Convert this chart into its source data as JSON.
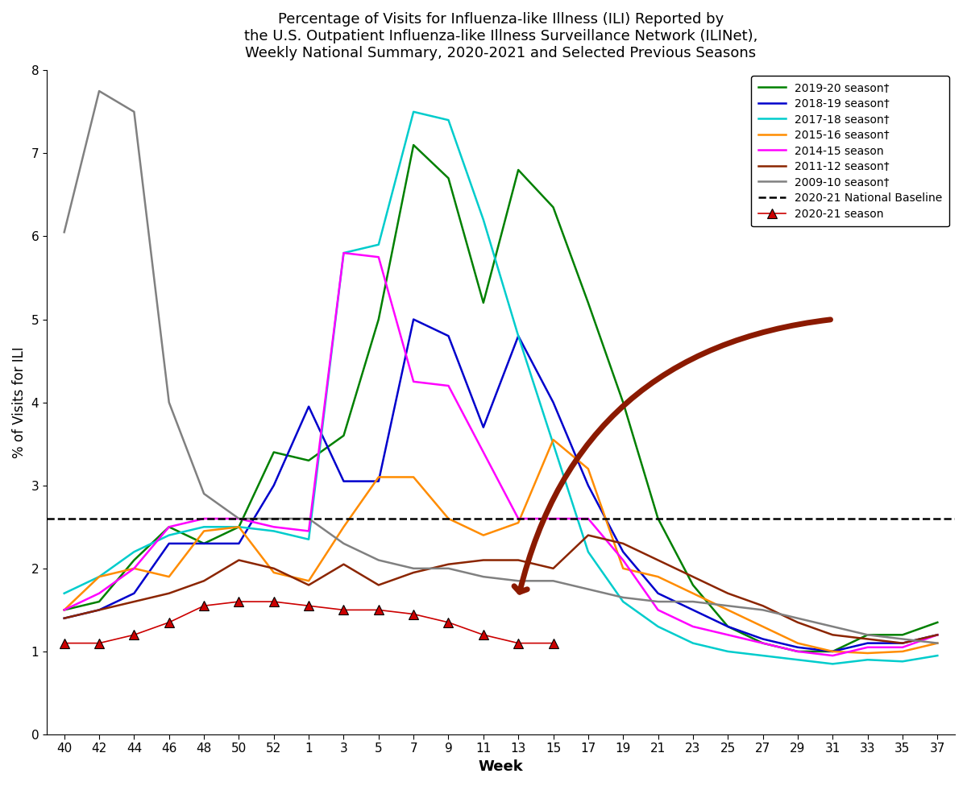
{
  "title": "Percentage of Visits for Influenza-like Illness (ILI) Reported by\nthe U.S. Outpatient Influenza-like Illness Surveillance Network (ILINet),\nWeekly National Summary, 2020-2021 and Selected Previous Seasons",
  "xlabel": "Week",
  "ylabel": "% of Visits for ILI",
  "baseline": 2.6,
  "ylim": [
    0,
    8
  ],
  "yticks": [
    0,
    1,
    2,
    3,
    4,
    5,
    6,
    7,
    8
  ],
  "x_labels": [
    "40",
    "42",
    "44",
    "46",
    "48",
    "50",
    "52",
    "1",
    "3",
    "5",
    "7",
    "9",
    "11",
    "13",
    "15",
    "17",
    "19",
    "21",
    "23",
    "25",
    "27",
    "29",
    "31",
    "33",
    "35",
    "37"
  ],
  "seasons": {
    "2019-20": {
      "color": "#008000",
      "label": "2019-20 season†",
      "data": [
        1.5,
        1.6,
        2.1,
        2.5,
        2.3,
        2.5,
        3.4,
        3.3,
        3.6,
        5.0,
        7.1,
        6.7,
        5.2,
        6.8,
        6.35,
        5.2,
        4.0,
        2.6,
        1.8,
        1.3,
        1.1,
        1.0,
        1.0,
        1.2,
        1.2,
        1.35
      ]
    },
    "2018-19": {
      "color": "#0000CC",
      "label": "2018-19 season†",
      "data": [
        1.4,
        1.5,
        1.7,
        2.3,
        2.3,
        2.3,
        3.0,
        3.95,
        3.05,
        3.05,
        5.0,
        4.8,
        3.7,
        4.8,
        4.0,
        3.0,
        2.2,
        1.7,
        1.5,
        1.3,
        1.15,
        1.05,
        1.0,
        1.1,
        1.1,
        1.2
      ]
    },
    "2017-18": {
      "color": "#00CCCC",
      "label": "2017-18 season†",
      "data": [
        1.7,
        1.9,
        2.2,
        2.4,
        2.5,
        2.5,
        2.45,
        2.35,
        5.8,
        5.9,
        7.5,
        7.4,
        6.2,
        4.8,
        3.5,
        2.2,
        1.6,
        1.3,
        1.1,
        1.0,
        0.95,
        0.9,
        0.85,
        0.9,
        0.88,
        0.95
      ]
    },
    "2015-16": {
      "color": "#FF8C00",
      "label": "2015-16 season†",
      "data": [
        1.5,
        1.9,
        2.0,
        1.9,
        2.45,
        2.5,
        1.95,
        1.85,
        2.5,
        3.1,
        3.1,
        2.6,
        2.4,
        2.55,
        3.55,
        3.2,
        2.0,
        1.9,
        1.7,
        1.5,
        1.3,
        1.1,
        1.0,
        0.98,
        1.0,
        1.1
      ]
    },
    "2014-15": {
      "color": "#FF00FF",
      "label": "2014-15 season",
      "data": [
        1.5,
        1.7,
        2.0,
        2.5,
        2.6,
        2.6,
        2.5,
        2.45,
        5.8,
        5.75,
        4.25,
        4.2,
        3.4,
        2.6,
        2.6,
        2.6,
        2.1,
        1.5,
        1.3,
        1.2,
        1.1,
        1.0,
        0.95,
        1.05,
        1.05,
        1.2
      ]
    },
    "2011-12": {
      "color": "#8B2500",
      "label": "2011-12 season†",
      "data": [
        1.4,
        1.5,
        1.6,
        1.7,
        1.85,
        2.1,
        2.0,
        1.8,
        2.05,
        1.8,
        1.95,
        2.05,
        2.1,
        2.1,
        2.0,
        2.4,
        2.3,
        2.1,
        1.9,
        1.7,
        1.55,
        1.35,
        1.2,
        1.15,
        1.1,
        1.2
      ]
    },
    "2009-10": {
      "color": "#808080",
      "label": "2009-10 season†",
      "data": [
        6.05,
        7.75,
        7.5,
        4.0,
        2.9,
        2.6,
        2.6,
        2.6,
        2.3,
        2.1,
        2.0,
        2.0,
        1.9,
        1.85,
        1.85,
        1.75,
        1.65,
        1.6,
        1.6,
        1.55,
        1.5,
        1.4,
        1.3,
        1.2,
        1.15,
        1.1
      ]
    }
  },
  "season_2021": {
    "color": "#CC0000",
    "label": "2020-21 season",
    "weeks_idx": [
      0,
      1,
      2,
      3,
      4,
      5,
      6,
      7,
      8,
      9,
      10,
      11,
      12,
      13,
      14
    ],
    "data": [
      1.1,
      1.1,
      1.2,
      1.35,
      1.55,
      1.6,
      1.6,
      1.55,
      1.5,
      1.5,
      1.45,
      1.35,
      1.2,
      1.1,
      1.1
    ]
  },
  "arrow_startx": 22,
  "arrow_starty": 5.0,
  "arrow_endx": 13,
  "arrow_endy": 1.65
}
